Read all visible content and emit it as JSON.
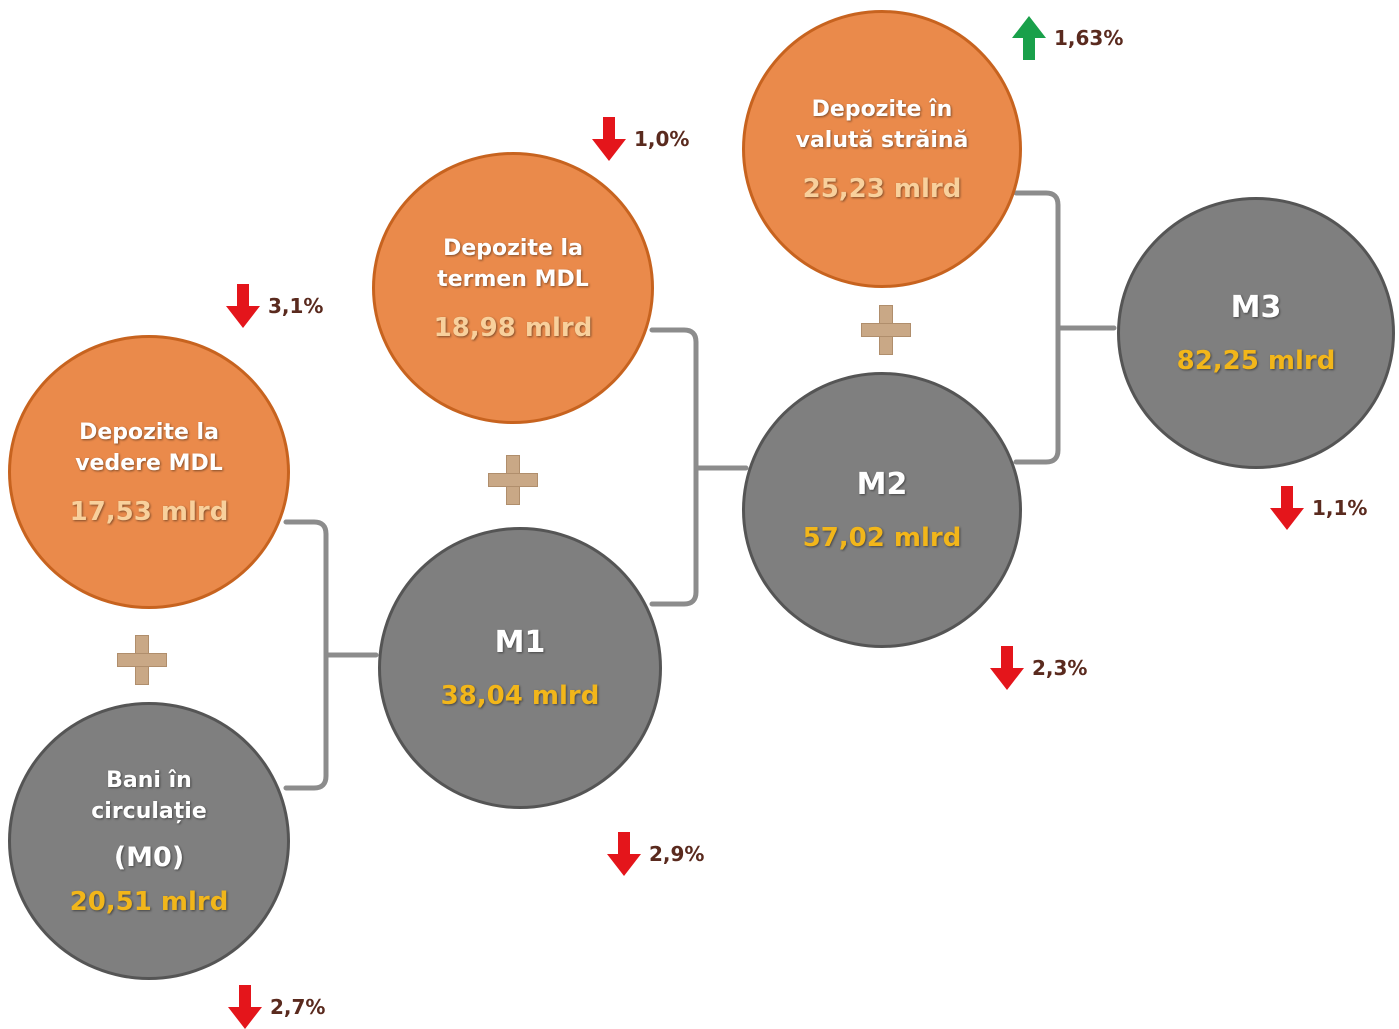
{
  "colors": {
    "orange": "#ea8a4b",
    "gray": "#7f7f7f",
    "down_arrow": "#e4151b",
    "up_arrow": "#19a04a",
    "percent_text": "#5a2a1e",
    "amount_gold": "#f2b61a",
    "amount_light": "#f8d09c",
    "plus": "#c9a886",
    "connector": "#8c8c8c"
  },
  "nodes": {
    "demand_deposits": {
      "label_1": "Depozite la",
      "label_2": "vedere MDL",
      "amount": "17,53 mlrd"
    },
    "cash": {
      "label_1": "Bani în",
      "label_2": "circulație",
      "code": "(M0)",
      "amount": "20,51 mlrd"
    },
    "time_deposits": {
      "label_1": "Depozite la",
      "label_2": "termen MDL",
      "amount": "18,98 mlrd"
    },
    "m1": {
      "title": "M1",
      "amount": "38,04 mlrd"
    },
    "fx_deposits": {
      "label_1": "Depozite în",
      "label_2": "valută străină",
      "amount": "25,23 mlrd"
    },
    "m2": {
      "title": "M2",
      "amount": "57,02 mlrd"
    },
    "m3": {
      "title": "M3",
      "amount": "82,25 mlrd"
    }
  },
  "changes": {
    "demand_deposits": {
      "direction": "down",
      "value": "3,1%"
    },
    "cash": {
      "direction": "down",
      "value": "2,7%"
    },
    "time_deposits": {
      "direction": "down",
      "value": "1,0%"
    },
    "m1": {
      "direction": "down",
      "value": "2,9%"
    },
    "fx_deposits": {
      "direction": "up",
      "value": "1,63%"
    },
    "m2": {
      "direction": "down",
      "value": "2,3%"
    },
    "m3": {
      "direction": "down",
      "value": "1,1%"
    }
  }
}
